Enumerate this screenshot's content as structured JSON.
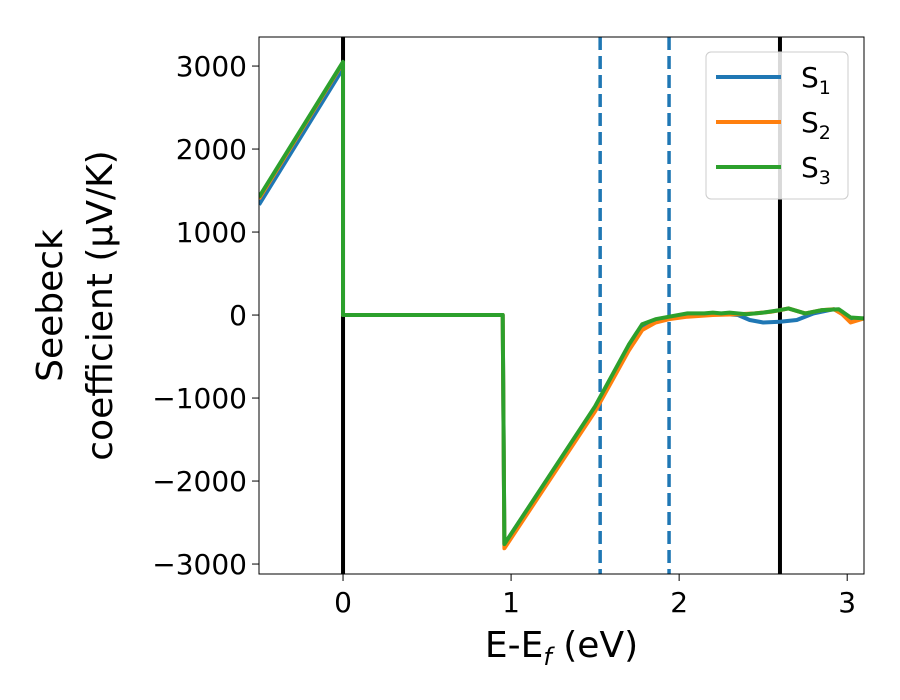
{
  "chart_data": {
    "type": "line",
    "xlabel": "E-E",
    "xlabel_sub": "f",
    "xlabel_unit": " (eV)",
    "ylabel_line1": "Seebeck",
    "ylabel_line2": "coefficient  (μV/K)",
    "xlim": [
      -0.5,
      3.1
    ],
    "ylim": [
      -3120,
      3350
    ],
    "xticks": [
      0,
      1,
      2,
      3
    ],
    "xtick_labels": [
      "0",
      "1",
      "2",
      "3"
    ],
    "yticks": [
      3000,
      2000,
      1000,
      0,
      -1000,
      -2000,
      -3000
    ],
    "ytick_labels": [
      "3000",
      "2000",
      "1000",
      "0",
      "−1000",
      "−2000",
      "−3000"
    ],
    "grid": false,
    "legend_placement": "top-right",
    "vertical_lines": [
      {
        "x": 0.0,
        "style": "solid",
        "color": "#000000"
      },
      {
        "x": 2.6,
        "style": "solid",
        "color": "#000000"
      },
      {
        "x": 1.53,
        "style": "dashed",
        "color": "#1f77b4"
      },
      {
        "x": 1.94,
        "style": "dashed",
        "color": "#1f77b4"
      }
    ],
    "series": [
      {
        "name": "S",
        "sub": "1",
        "color": "#1f77b4",
        "points": [
          [
            -0.5,
            1330
          ],
          [
            0.0,
            2970
          ],
          [
            0.0,
            0
          ],
          [
            0.95,
            0
          ],
          [
            0.96,
            -2760
          ],
          [
            1.5,
            -1120
          ],
          [
            1.7,
            -400
          ],
          [
            1.78,
            -150
          ],
          [
            1.86,
            -60
          ],
          [
            1.94,
            -30
          ],
          [
            2.05,
            10
          ],
          [
            2.2,
            20
          ],
          [
            2.35,
            0
          ],
          [
            2.42,
            -60
          ],
          [
            2.5,
            -90
          ],
          [
            2.6,
            -80
          ],
          [
            2.7,
            -60
          ],
          [
            2.8,
            20
          ],
          [
            2.92,
            70
          ],
          [
            2.97,
            40
          ],
          [
            3.02,
            -50
          ],
          [
            3.1,
            -40
          ]
        ]
      },
      {
        "name": "S",
        "sub": "2",
        "color": "#ff7f0e",
        "points": [
          [
            -0.5,
            1400
          ],
          [
            0.0,
            3040
          ],
          [
            0.0,
            0
          ],
          [
            0.95,
            0
          ],
          [
            0.96,
            -2810
          ],
          [
            1.5,
            -1160
          ],
          [
            1.7,
            -430
          ],
          [
            1.78,
            -180
          ],
          [
            1.86,
            -90
          ],
          [
            1.94,
            -50
          ],
          [
            2.05,
            -20
          ],
          [
            2.2,
            0
          ],
          [
            2.35,
            10
          ],
          [
            2.45,
            20
          ],
          [
            2.55,
            40
          ],
          [
            2.6,
            60
          ],
          [
            2.65,
            80
          ],
          [
            2.75,
            20
          ],
          [
            2.85,
            60
          ],
          [
            2.92,
            70
          ],
          [
            2.97,
            10
          ],
          [
            3.02,
            -90
          ],
          [
            3.1,
            -40
          ]
        ]
      },
      {
        "name": "S",
        "sub": "3",
        "color": "#2ca02c",
        "points": [
          [
            -0.5,
            1420
          ],
          [
            0.0,
            3050
          ],
          [
            0.0,
            0
          ],
          [
            0.95,
            0
          ],
          [
            0.96,
            -2760
          ],
          [
            1.5,
            -1100
          ],
          [
            1.7,
            -360
          ],
          [
            1.78,
            -110
          ],
          [
            1.86,
            -50
          ],
          [
            1.94,
            -20
          ],
          [
            2.05,
            20
          ],
          [
            2.15,
            20
          ],
          [
            2.2,
            30
          ],
          [
            2.25,
            20
          ],
          [
            2.3,
            30
          ],
          [
            2.4,
            10
          ],
          [
            2.5,
            30
          ],
          [
            2.6,
            60
          ],
          [
            2.65,
            80
          ],
          [
            2.75,
            20
          ],
          [
            2.85,
            60
          ],
          [
            2.95,
            70
          ],
          [
            3.02,
            -30
          ],
          [
            3.1,
            -40
          ]
        ]
      }
    ]
  }
}
